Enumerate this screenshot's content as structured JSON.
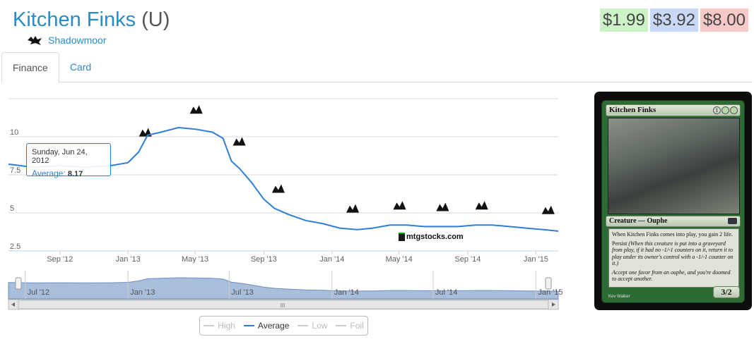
{
  "header": {
    "card_name": "Kitchen Finks",
    "rarity": "(U)",
    "set_name": "Shadowmoor",
    "set_icon": "shadowmoor-set-icon"
  },
  "prices": [
    {
      "value": "$1.99",
      "color": "#cdf2c8"
    },
    {
      "value": "$3.92",
      "color": "#c9d8f5"
    },
    {
      "value": "$8.00",
      "color": "#f6c9c9"
    }
  ],
  "tabs": [
    {
      "label": "Finance",
      "active": true
    },
    {
      "label": "Card",
      "active": false
    }
  ],
  "tooltip": {
    "date": "Sunday, Jun 24, 2012",
    "series": "Average:",
    "value": "8.17"
  },
  "watermark": "mtgstocks.com",
  "legend": [
    {
      "label": "High",
      "active": false
    },
    {
      "label": "Average",
      "active": true
    },
    {
      "label": "Low",
      "active": false
    },
    {
      "label": "Foil",
      "active": false
    }
  ],
  "navigator": {
    "labels": [
      "Jul '12",
      "Jan '13",
      "Jul '13",
      "Jan '14",
      "Jul '14",
      "Jan '15"
    ],
    "scrollbar_grip": "III"
  },
  "chart_data": {
    "type": "line",
    "series": [
      {
        "name": "Average",
        "color": "#2f7ed8",
        "x": [
          "2012-06-01",
          "2012-07-15",
          "2012-09-01",
          "2012-10-15",
          "2012-12-01",
          "2013-01-01",
          "2013-01-20",
          "2013-02-05",
          "2013-03-01",
          "2013-04-01",
          "2013-05-01",
          "2013-06-01",
          "2013-06-20",
          "2013-07-05",
          "2013-07-20",
          "2013-08-10",
          "2013-09-01",
          "2013-09-20",
          "2013-10-15",
          "2013-11-15",
          "2013-12-15",
          "2014-01-15",
          "2014-02-15",
          "2014-03-15",
          "2014-04-15",
          "2014-05-15",
          "2014-06-15",
          "2014-07-15",
          "2014-08-15",
          "2014-09-15",
          "2014-10-15",
          "2014-11-15",
          "2014-12-15",
          "2015-01-15",
          "2015-02-10"
        ],
        "y": [
          8.2,
          8.0,
          8.1,
          8.0,
          8.1,
          8.3,
          9.0,
          10.1,
          10.3,
          10.6,
          10.5,
          10.3,
          9.9,
          8.4,
          7.9,
          7.0,
          5.9,
          5.3,
          4.9,
          4.5,
          4.3,
          4.0,
          3.9,
          4.0,
          4.2,
          4.2,
          4.1,
          4.1,
          4.1,
          4.2,
          4.2,
          4.1,
          4.0,
          3.9,
          3.8
        ]
      }
    ],
    "x_tick_labels": [
      "Sep '12",
      "Jan '13",
      "May '13",
      "Sep '13",
      "Jan '14",
      "May '14",
      "Sep '14",
      "Jan '15"
    ],
    "y_tick_labels": [
      "2.5",
      "5",
      "7.5",
      "10"
    ],
    "ylim": [
      2.5,
      12.5
    ],
    "xlim": [
      "2012-06-01",
      "2015-02-10"
    ],
    "grid": true,
    "legend_position": "bottom",
    "set_release_markers": [
      {
        "date": "2013-02-01",
        "icon": "gatecrash-icon"
      },
      {
        "date": "2013-05-03",
        "icon": "dragons-maze-icon"
      },
      {
        "date": "2013-07-19",
        "icon": "magic-2014-icon"
      },
      {
        "date": "2013-09-27",
        "icon": "theros-icon"
      },
      {
        "date": "2014-02-07",
        "icon": "born-of-the-gods-icon"
      },
      {
        "date": "2014-05-02",
        "icon": "journey-into-nyx-icon"
      },
      {
        "date": "2014-07-18",
        "icon": "magic-2015-icon"
      },
      {
        "date": "2014-09-26",
        "icon": "khans-of-tarkir-icon"
      },
      {
        "date": "2015-01-23",
        "icon": "fate-reforged-icon"
      }
    ]
  },
  "card_image": {
    "name": "Kitchen Finks",
    "mana_cost": [
      "1",
      "G/W",
      "G/W"
    ],
    "type_line": "Creature — Ouphe",
    "rules_text_1": "When Kitchen Finks comes into play, you gain 2 life.",
    "rules_text_2_keyword": "Persist",
    "rules_text_2_reminder": "(When this creature is put into a graveyard from play, if it had no -1/-1 counters on it, return it to play under its owner's control with a -1/-1 counter on it.)",
    "flavor_text": "Accept one favor from an ouphe, and you're doomed to accept another.",
    "power_toughness": "3/2",
    "artist": "Kev Walker"
  }
}
